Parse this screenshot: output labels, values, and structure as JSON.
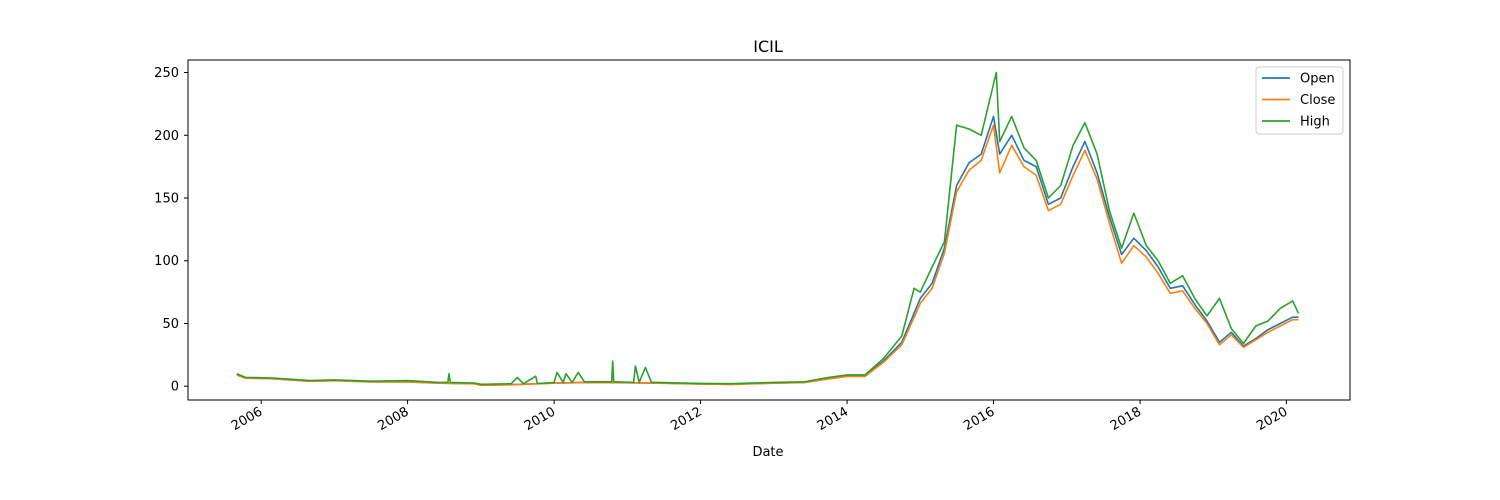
{
  "chart_data": {
    "type": "line",
    "title": "ICIL",
    "xlabel": "Date",
    "ylabel": "",
    "xlim": [
      "2005-01-01",
      "2020-11-13"
    ],
    "ylim": [
      -11,
      260
    ],
    "x_ticks": [
      "2006",
      "2008",
      "2010",
      "2012",
      "2014",
      "2016",
      "2018",
      "2020"
    ],
    "y_ticks": [
      0,
      50,
      100,
      150,
      200,
      250
    ],
    "grid": false,
    "legend_position": "top-right",
    "series": [
      {
        "name": "Open",
        "color": "#1f77b4",
        "points": [
          [
            "2005-09-01",
            9
          ],
          [
            "2005-10-15",
            6.5
          ],
          [
            "2006-03-01",
            6
          ],
          [
            "2006-09-01",
            4
          ],
          [
            "2007-01-01",
            4.5
          ],
          [
            "2007-07-01",
            3.5
          ],
          [
            "2008-01-01",
            3.5
          ],
          [
            "2008-06-01",
            2.5
          ],
          [
            "2008-12-01",
            2
          ],
          [
            "2009-01-01",
            0.8
          ],
          [
            "2009-06-01",
            1.2
          ],
          [
            "2010-01-01",
            2.5
          ],
          [
            "2010-06-01",
            3
          ],
          [
            "2011-01-01",
            2.8
          ],
          [
            "2011-06-01",
            2.5
          ],
          [
            "2012-01-01",
            1.8
          ],
          [
            "2012-06-01",
            1.5
          ],
          [
            "2013-01-01",
            2.5
          ],
          [
            "2013-06-01",
            3
          ],
          [
            "2013-10-01",
            6
          ],
          [
            "2014-01-01",
            8
          ],
          [
            "2014-04-01",
            8
          ],
          [
            "2014-07-01",
            20
          ],
          [
            "2014-10-01",
            35
          ],
          [
            "2015-01-01",
            70
          ],
          [
            "2015-03-01",
            82
          ],
          [
            "2015-05-01",
            110
          ],
          [
            "2015-07-01",
            160
          ],
          [
            "2015-09-01",
            178
          ],
          [
            "2015-11-01",
            185
          ],
          [
            "2016-01-01",
            215
          ],
          [
            "2016-02-01",
            185
          ],
          [
            "2016-04-01",
            200
          ],
          [
            "2016-06-01",
            180
          ],
          [
            "2016-08-01",
            175
          ],
          [
            "2016-10-01",
            145
          ],
          [
            "2016-12-01",
            150
          ],
          [
            "2017-02-01",
            175
          ],
          [
            "2017-04-01",
            195
          ],
          [
            "2017-06-01",
            170
          ],
          [
            "2017-08-01",
            135
          ],
          [
            "2017-10-01",
            105
          ],
          [
            "2017-12-01",
            118
          ],
          [
            "2018-02-01",
            108
          ],
          [
            "2018-04-01",
            95
          ],
          [
            "2018-06-01",
            78
          ],
          [
            "2018-08-01",
            80
          ],
          [
            "2018-10-01",
            65
          ],
          [
            "2018-12-01",
            52
          ],
          [
            "2019-02-01",
            35
          ],
          [
            "2019-04-01",
            43
          ],
          [
            "2019-06-01",
            32
          ],
          [
            "2019-08-01",
            38
          ],
          [
            "2019-10-01",
            45
          ],
          [
            "2019-12-01",
            50
          ],
          [
            "2020-02-01",
            55
          ],
          [
            "2020-03-01",
            55
          ]
        ]
      },
      {
        "name": "Close",
        "color": "#ff7f0e",
        "points": [
          [
            "2005-09-01",
            9
          ],
          [
            "2005-10-15",
            6.4
          ],
          [
            "2006-03-01",
            5.9
          ],
          [
            "2006-09-01",
            3.9
          ],
          [
            "2007-01-01",
            4.4
          ],
          [
            "2007-07-01",
            3.4
          ],
          [
            "2008-01-01",
            3.4
          ],
          [
            "2008-06-01",
            2.4
          ],
          [
            "2008-12-01",
            1.9
          ],
          [
            "2009-01-01",
            0.7
          ],
          [
            "2009-06-01",
            1.1
          ],
          [
            "2010-01-01",
            2.4
          ],
          [
            "2010-06-01",
            2.9
          ],
          [
            "2011-01-01",
            2.7
          ],
          [
            "2011-06-01",
            2.4
          ],
          [
            "2012-01-01",
            1.7
          ],
          [
            "2012-06-01",
            1.4
          ],
          [
            "2013-01-01",
            2.4
          ],
          [
            "2013-06-01",
            2.9
          ],
          [
            "2013-10-01",
            5.8
          ],
          [
            "2014-01-01",
            7.8
          ],
          [
            "2014-04-01",
            7.8
          ],
          [
            "2014-07-01",
            19
          ],
          [
            "2014-10-01",
            33
          ],
          [
            "2015-01-01",
            66
          ],
          [
            "2015-03-01",
            78
          ],
          [
            "2015-05-01",
            106
          ],
          [
            "2015-07-01",
            155
          ],
          [
            "2015-09-01",
            172
          ],
          [
            "2015-11-01",
            180
          ],
          [
            "2016-01-01",
            208
          ],
          [
            "2016-02-01",
            170
          ],
          [
            "2016-04-01",
            192
          ],
          [
            "2016-06-01",
            175
          ],
          [
            "2016-08-01",
            168
          ],
          [
            "2016-10-01",
            140
          ],
          [
            "2016-12-01",
            145
          ],
          [
            "2017-02-01",
            168
          ],
          [
            "2017-04-01",
            188
          ],
          [
            "2017-06-01",
            165
          ],
          [
            "2017-08-01",
            130
          ],
          [
            "2017-10-01",
            98
          ],
          [
            "2017-12-01",
            112
          ],
          [
            "2018-02-01",
            103
          ],
          [
            "2018-04-01",
            90
          ],
          [
            "2018-06-01",
            74
          ],
          [
            "2018-08-01",
            76
          ],
          [
            "2018-10-01",
            62
          ],
          [
            "2018-12-01",
            50
          ],
          [
            "2019-02-01",
            33
          ],
          [
            "2019-04-01",
            41
          ],
          [
            "2019-06-01",
            31
          ],
          [
            "2019-08-01",
            37
          ],
          [
            "2019-10-01",
            43
          ],
          [
            "2019-12-01",
            48
          ],
          [
            "2020-02-01",
            53
          ],
          [
            "2020-03-01",
            53
          ]
        ]
      },
      {
        "name": "High",
        "color": "#2ca02c",
        "points": [
          [
            "2005-09-01",
            10
          ],
          [
            "2005-10-15",
            7
          ],
          [
            "2006-03-01",
            6.5
          ],
          [
            "2006-09-01",
            4.5
          ],
          [
            "2007-01-01",
            5
          ],
          [
            "2007-07-01",
            4
          ],
          [
            "2008-01-01",
            4.5
          ],
          [
            "2008-06-01",
            3
          ],
          [
            "2008-07-20",
            3
          ],
          [
            "2008-07-25",
            10
          ],
          [
            "2008-08-01",
            3
          ],
          [
            "2008-12-01",
            2.5
          ],
          [
            "2009-01-01",
            1.5
          ],
          [
            "2009-06-01",
            2
          ],
          [
            "2009-07-01",
            7
          ],
          [
            "2009-08-01",
            2
          ],
          [
            "2009-10-01",
            8
          ],
          [
            "2009-10-10",
            2
          ],
          [
            "2010-01-01",
            3
          ],
          [
            "2010-01-15",
            11
          ],
          [
            "2010-02-15",
            3
          ],
          [
            "2010-03-01",
            10
          ],
          [
            "2010-04-01",
            3
          ],
          [
            "2010-05-01",
            11
          ],
          [
            "2010-06-01",
            3.5
          ],
          [
            "2010-10-15",
            3.5
          ],
          [
            "2010-10-20",
            20
          ],
          [
            "2010-10-25",
            3.5
          ],
          [
            "2011-02-01",
            3
          ],
          [
            "2011-02-10",
            16
          ],
          [
            "2011-03-01",
            3
          ],
          [
            "2011-04-01",
            15
          ],
          [
            "2011-05-01",
            3
          ],
          [
            "2011-06-01",
            3
          ],
          [
            "2012-01-01",
            2.2
          ],
          [
            "2012-06-01",
            2
          ],
          [
            "2013-01-01",
            3
          ],
          [
            "2013-06-01",
            3.5
          ],
          [
            "2013-10-01",
            7
          ],
          [
            "2014-01-01",
            9
          ],
          [
            "2014-04-01",
            9
          ],
          [
            "2014-07-01",
            22
          ],
          [
            "2014-10-01",
            40
          ],
          [
            "2014-12-01",
            78
          ],
          [
            "2015-01-01",
            75
          ],
          [
            "2015-03-01",
            95
          ],
          [
            "2015-05-01",
            115
          ],
          [
            "2015-07-01",
            208
          ],
          [
            "2015-09-01",
            205
          ],
          [
            "2015-11-01",
            200
          ],
          [
            "2016-01-15",
            250
          ],
          [
            "2016-02-01",
            195
          ],
          [
            "2016-04-01",
            215
          ],
          [
            "2016-06-01",
            190
          ],
          [
            "2016-08-01",
            180
          ],
          [
            "2016-10-01",
            150
          ],
          [
            "2016-12-01",
            160
          ],
          [
            "2017-02-01",
            192
          ],
          [
            "2017-04-01",
            210
          ],
          [
            "2017-06-01",
            185
          ],
          [
            "2017-08-01",
            140
          ],
          [
            "2017-10-01",
            110
          ],
          [
            "2017-12-01",
            138
          ],
          [
            "2018-02-01",
            112
          ],
          [
            "2018-04-01",
            100
          ],
          [
            "2018-06-01",
            82
          ],
          [
            "2018-08-01",
            88
          ],
          [
            "2018-10-01",
            70
          ],
          [
            "2018-12-01",
            56
          ],
          [
            "2019-02-01",
            70
          ],
          [
            "2019-04-01",
            46
          ],
          [
            "2019-06-01",
            34
          ],
          [
            "2019-08-01",
            48
          ],
          [
            "2019-10-01",
            52
          ],
          [
            "2019-12-01",
            62
          ],
          [
            "2020-02-01",
            68
          ],
          [
            "2020-03-01",
            58
          ]
        ]
      }
    ]
  }
}
